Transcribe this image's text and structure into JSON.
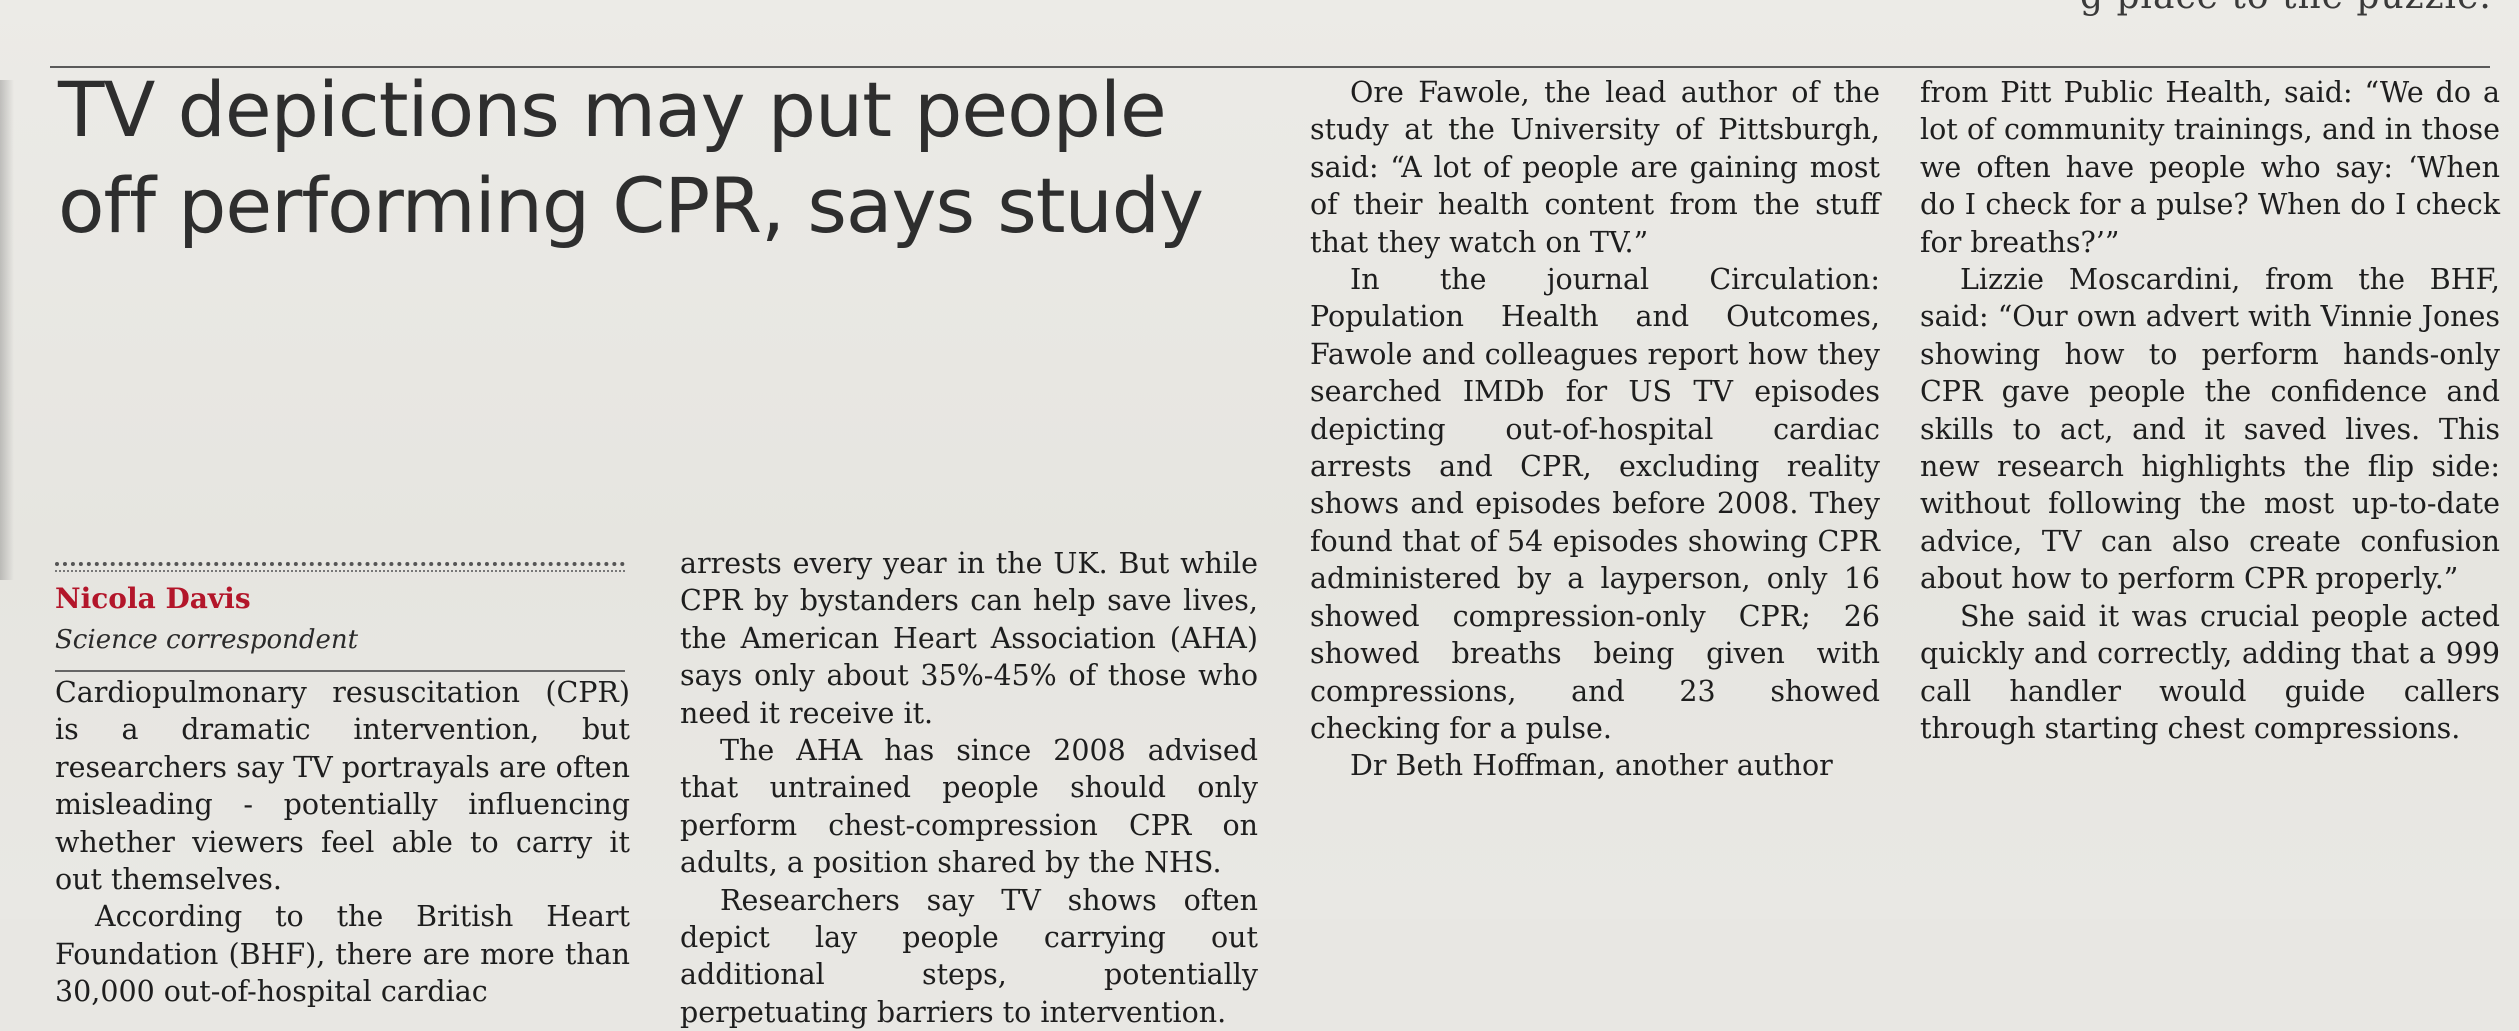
{
  "top_strip_text": "g place to the puzzle.",
  "headline": "TV depictions may put people off performing CPR, says study",
  "byline": {
    "author": "Nicola Davis",
    "role": "Science correspondent"
  },
  "columns": [
    {
      "paragraphs": [
        "Cardiopulmonary resuscitation (CPR) is a dramatic intervention, but researchers say TV portrayals are often misleading - potentially influencing whether viewers feel able to carry it out themselves.",
        "According to the British Heart Foundation (BHF), there are more than 30,000 out-of-hospital cardiac"
      ]
    },
    {
      "paragraphs": [
        "arrests every year in the UK. But while CPR by bystanders can help save lives, the American Heart Association (AHA) says only about 35%-45% of those who need it receive it.",
        "The AHA has since 2008 advised that untrained people should only perform chest-compression CPR on adults, a position shared by the NHS.",
        "Researchers say TV shows often depict lay people carrying out additional steps, potentially perpetuating barriers to intervention."
      ]
    },
    {
      "paragraphs": [
        "Ore Fawole, the lead author of the study at the University of Pittsburgh, said: “A lot of people are gaining most of their health content from the stuff that they watch on TV.”",
        "In the journal Circulation: Population Health and Outcomes, Fawole and colleagues report how they searched IMDb for US TV episodes depicting out-of-hospital cardiac arrests and CPR, excluding reality shows and episodes before 2008. They found that of 54 episodes showing CPR administered by a layperson, only 16 showed compression-only CPR; 26 showed breaths being given with compressions, and 23 showed checking for a pulse.",
        "Dr Beth Hoffman, another author"
      ]
    },
    {
      "paragraphs": [
        "from Pitt Public Health, said: “We do a lot of community trainings, and in those we often have people who say: ‘When do I check for a pulse? When do I check for breaths?’”",
        "Lizzie Moscardini, from the BHF, said: “Our own advert with Vinnie Jones showing how to perform hands-only CPR gave people the confidence and skills to act, and it saved lives. This new research highlights the flip side: without following the most up-to-date advice, TV can also create confusion about how to perform CPR properly.”",
        "She said it was crucial people acted quickly and correctly, adding that a 999 call handler would guide callers through starting chest compressions."
      ]
    }
  ]
}
